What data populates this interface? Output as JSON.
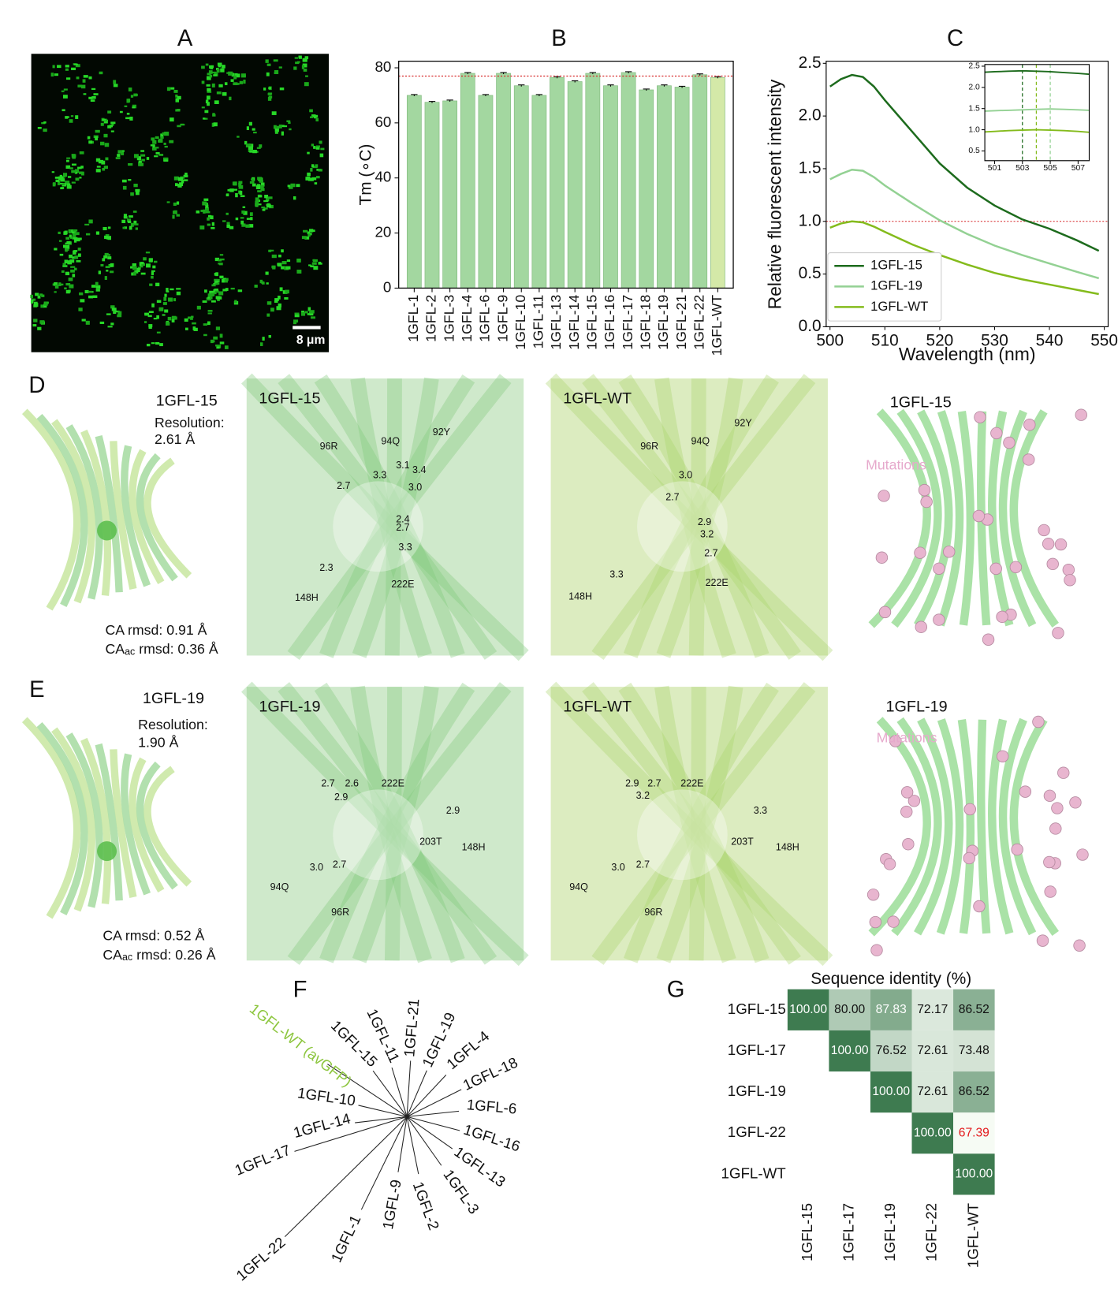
{
  "figure": {
    "panel_labels": [
      "A",
      "B",
      "C",
      "D",
      "E",
      "F",
      "G"
    ],
    "micrograph": {
      "scale_bar": "8 μm"
    },
    "structures": [
      {
        "title": "1GFL-15",
        "resolution_label": "Resolution:",
        "resolution": "2.61 Å",
        "ca_rmsd": "CA rmsd: 0.91 Å",
        "caac_rmsd": {
          "prefix": "CA",
          "sub": "ac",
          "text": " rmsd: 0.36 Å"
        },
        "views": [
          {
            "title": "1GFL-15",
            "labels": [
              "96R",
              "94Q",
              "92Y",
              "3.3",
              "3.1",
              "3.4",
              "2.7",
              "3.0",
              "2.4",
              "2.7",
              "3.3",
              "2.3",
              "148H",
              "222E"
            ]
          },
          {
            "title": "1GFL-WT",
            "labels": [
              "96R",
              "94Q",
              "92Y",
              "3.0",
              "2.7",
              "2.9",
              "3.2",
              "2.7",
              "3.3",
              "148H",
              "222E"
            ]
          }
        ],
        "mutations_title": "1GFL-15",
        "mutations_label": "Mutations"
      },
      {
        "title": "1GFL-19",
        "resolution_label": "Resolution:",
        "resolution": "1.90 Å",
        "ca_rmsd": "CA rmsd: 0.52 Å",
        "caac_rmsd": {
          "prefix": "CA",
          "sub": "ac",
          "text": " rmsd: 0.26 Å"
        },
        "views": [
          {
            "title": "1GFL-19",
            "labels": [
              "2.7",
              "2.6",
              "222E",
              "2.9",
              "2.9",
              "203T",
              "148H",
              "3.0",
              "2.7",
              "94Q",
              "96R"
            ]
          },
          {
            "title": "1GFL-WT",
            "labels": [
              "2.9",
              "2.7",
              "222E",
              "3.2",
              "3.3",
              "203T",
              "148H",
              "3.0",
              "2.7",
              "94Q",
              "96R"
            ]
          }
        ],
        "mutations_title": "1GFL-19",
        "mutations_label": "Mutations"
      }
    ],
    "tree": {
      "leaves": [
        {
          "label": "1GFL-WT (avGFP)",
          "color": "#8dc63f"
        },
        {
          "label": "1GFL-15"
        },
        {
          "label": "1GFL-11"
        },
        {
          "label": "1GFL-21"
        },
        {
          "label": "1GFL-19"
        },
        {
          "label": "1GFL-4"
        },
        {
          "label": "1GFL-18"
        },
        {
          "label": "1GFL-6"
        },
        {
          "label": "1GFL-16"
        },
        {
          "label": "1GFL-13"
        },
        {
          "label": "1GFL-3"
        },
        {
          "label": "1GFL-2"
        },
        {
          "label": "1GFL-9"
        },
        {
          "label": "1GFL-1"
        },
        {
          "label": "1GFL-22"
        },
        {
          "label": "1GFL-17"
        },
        {
          "label": "1GFL-14"
        },
        {
          "label": "1GFL-10"
        }
      ]
    }
  },
  "chart_data": [
    {
      "type": "bar",
      "ylabel": "Tm (∘C)",
      "categories": [
        "1GFL-1",
        "1GFL-2",
        "1GFL-3",
        "1GFL-4",
        "1GFL-6",
        "1GFL-9",
        "1GFL-10",
        "1GFL-11",
        "1GFL-13",
        "1GFL-14",
        "1GFL-15",
        "1GFL-16",
        "1GFL-17",
        "1GFL-18",
        "1GFL-19",
        "1GFL-21",
        "1GFL-22",
        "1GFL-WT"
      ],
      "values": [
        70,
        67.5,
        68,
        78,
        70,
        78,
        73.5,
        70,
        76.5,
        75,
        78,
        73.5,
        78.3,
        72,
        73.5,
        73,
        77.5,
        76.5
      ],
      "errors": [
        0.3,
        0.3,
        0.3,
        0.3,
        0.3,
        0.3,
        0.3,
        0.3,
        0.3,
        0.3,
        0.3,
        0.3,
        0.3,
        0.3,
        0.3,
        0.3,
        0.3,
        0.3
      ],
      "colors": [
        "#a3d7a0",
        "#a3d7a0",
        "#a3d7a0",
        "#a3d7a0",
        "#a3d7a0",
        "#a3d7a0",
        "#a3d7a0",
        "#a3d7a0",
        "#a3d7a0",
        "#a3d7a0",
        "#a3d7a0",
        "#a3d7a0",
        "#a3d7a0",
        "#a3d7a0",
        "#a3d7a0",
        "#a3d7a0",
        "#a3d7a0",
        "#d4e9a8"
      ],
      "ylim": [
        0,
        82.4
      ],
      "yticks": [
        0,
        20,
        40,
        60,
        80
      ],
      "reference_line": 77,
      "reference_color": "#d62728"
    },
    {
      "type": "line",
      "xlabel": "Wavelength (nm)",
      "ylabel": "Relative fluorescent intensity",
      "x": [
        500,
        502,
        504,
        506,
        508,
        510,
        515,
        520,
        525,
        530,
        535,
        540,
        545,
        549
      ],
      "series": [
        {
          "name": "1GFL-15",
          "color": "#1d6b1d",
          "values": [
            2.28,
            2.35,
            2.39,
            2.37,
            2.28,
            2.15,
            1.85,
            1.55,
            1.32,
            1.15,
            1.02,
            0.93,
            0.82,
            0.72
          ]
        },
        {
          "name": "1GFL-19",
          "color": "#93d193",
          "values": [
            1.4,
            1.45,
            1.49,
            1.48,
            1.42,
            1.34,
            1.17,
            1.01,
            0.88,
            0.77,
            0.68,
            0.6,
            0.52,
            0.46
          ]
        },
        {
          "name": "1GFL-WT",
          "color": "#84bb1c",
          "values": [
            0.94,
            0.98,
            1.0,
            0.99,
            0.95,
            0.9,
            0.78,
            0.68,
            0.59,
            0.51,
            0.45,
            0.4,
            0.35,
            0.31
          ]
        }
      ],
      "xlim": [
        499.3,
        550.7
      ],
      "xticks": [
        500,
        510,
        520,
        530,
        540,
        550
      ],
      "ylim": [
        0,
        2.52
      ],
      "yticks": [
        {
          "value": 0,
          "label": "0.0"
        },
        0.5,
        {
          "value": 1,
          "label": "1.0"
        },
        1.5,
        {
          "value": 2,
          "label": "2.0"
        },
        2.5
      ],
      "reference_line": 1,
      "reference_color": "#d62728",
      "legend": "lower left"
    },
    {
      "type": "line",
      "inset": true,
      "x": [
        500.3,
        501,
        502,
        503,
        504,
        505,
        506,
        507,
        507.8
      ],
      "series": [
        {
          "color": "#1d6b1d",
          "values": [
            2.36,
            2.37,
            2.38,
            2.39,
            2.38,
            2.37,
            2.35,
            2.33,
            2.31
          ],
          "peak": 503
        },
        {
          "color": "#93d193",
          "values": [
            1.44,
            1.45,
            1.46,
            1.47,
            1.48,
            1.49,
            1.48,
            1.47,
            1.46
          ],
          "peak": 505
        },
        {
          "color": "#84bb1c",
          "values": [
            0.95,
            0.96,
            0.98,
            0.99,
            1.0,
            0.99,
            0.98,
            0.96,
            0.94
          ],
          "peak": 504
        }
      ],
      "xlim": [
        500.3,
        507.8
      ],
      "xticks": [
        501,
        503,
        505,
        507
      ],
      "ylim": [
        0.27,
        2.54
      ],
      "yticks": [
        0.5,
        {
          "value": 1,
          "label": "1.0"
        },
        1.5,
        {
          "value": 2,
          "label": "2.0"
        },
        2.5
      ]
    },
    {
      "type": "heatmap",
      "title": "Sequence identity (%)",
      "rows": [
        "1GFL-15",
        "1GFL-17",
        "1GFL-19",
        "1GFL-22",
        "1GFL-WT"
      ],
      "columns": [
        "1GFL-15",
        "1GFL-17",
        "1GFL-19",
        "1GFL-22",
        "1GFL-WT"
      ],
      "values": [
        [
          100,
          80,
          87.83,
          72.17,
          86.52
        ],
        [
          null,
          100,
          76.52,
          72.61,
          73.48
        ],
        [
          null,
          null,
          100,
          72.61,
          86.52
        ],
        [
          null,
          null,
          null,
          100,
          67.39
        ],
        [
          null,
          null,
          null,
          null,
          100
        ]
      ],
      "value_labels": [
        [
          "100.00",
          "80.00",
          "87.83",
          "72.17",
          "86.52"
        ],
        [
          null,
          "100.00",
          "76.52",
          "72.61",
          "73.48"
        ],
        [
          null,
          null,
          "100.00",
          "72.61",
          "86.52"
        ],
        [
          null,
          null,
          null,
          "100.00",
          "67.39"
        ],
        [
          null,
          null,
          null,
          null,
          "100.00"
        ]
      ],
      "colors": [
        "#f6fbf4",
        "#3e7b50"
      ],
      "min_label_color": "#e31a1c"
    }
  ]
}
